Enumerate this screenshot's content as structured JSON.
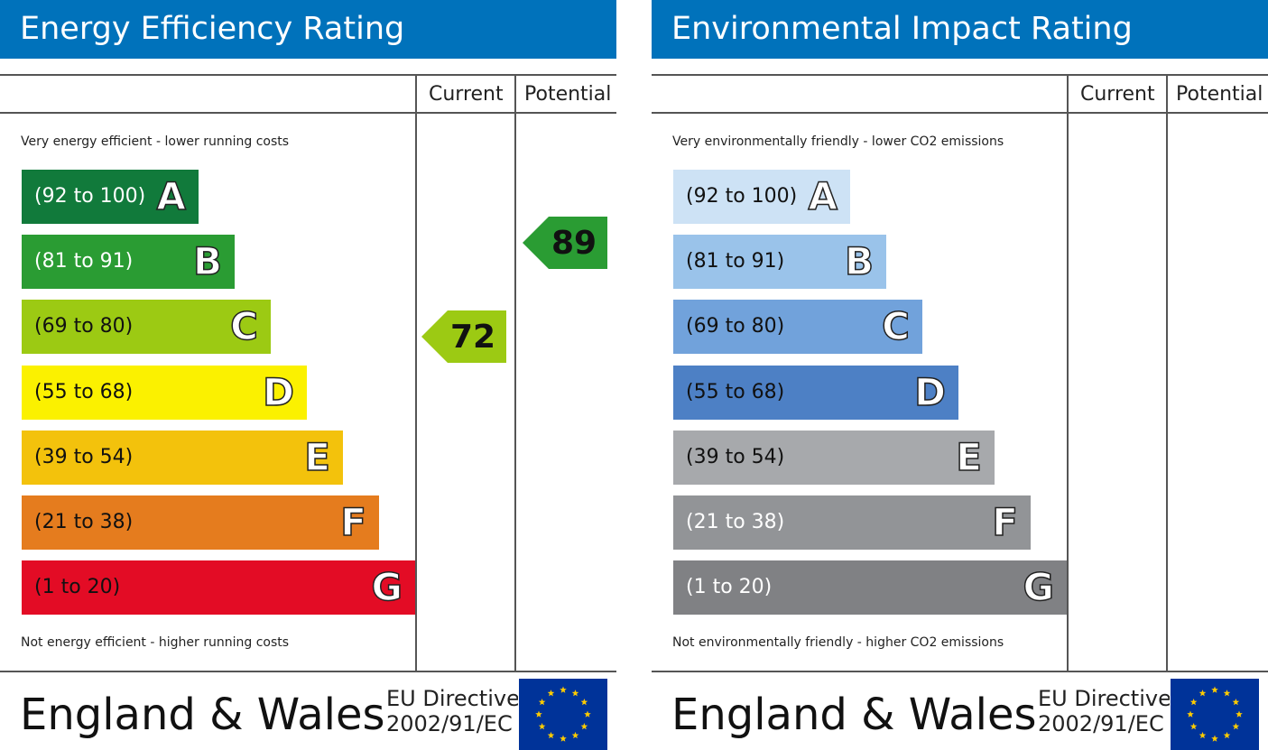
{
  "energy": {
    "title": "Energy Efficiency Rating",
    "col_current": "Current",
    "col_potential": "Potential",
    "top_caption": "Very energy efficient - lower running costs",
    "bottom_caption": "Not energy efficient - higher running costs",
    "bands": [
      {
        "range": "(92 to 100)",
        "letter": "A",
        "color": "#117a3b",
        "text_color": "#ffffff"
      },
      {
        "range": "(81 to 91)",
        "letter": "B",
        "color": "#2a9c33",
        "text_color": "#ffffff"
      },
      {
        "range": "(69 to 80)",
        "letter": "C",
        "color": "#9cca13",
        "text_color": "#111111"
      },
      {
        "range": "(55 to 68)",
        "letter": "D",
        "color": "#fbf100",
        "text_color": "#111111"
      },
      {
        "range": "(39 to 54)",
        "letter": "E",
        "color": "#f3c20c",
        "text_color": "#111111"
      },
      {
        "range": "(21 to 38)",
        "letter": "F",
        "color": "#e57c1e",
        "text_color": "#111111"
      },
      {
        "range": "(1 to 20)",
        "letter": "G",
        "color": "#e30c25",
        "text_color": "#111111"
      }
    ],
    "current_value": "72",
    "current_color": "#9cca13",
    "potential_value": "89",
    "potential_color": "#2a9c33",
    "footer_region": "England & Wales",
    "footer_directive_line1": "EU Directive",
    "footer_directive_line2": "2002/91/EC"
  },
  "environment": {
    "title": "Environmental Impact Rating",
    "col_current": "Current",
    "col_potential": "Potential",
    "top_caption": "Very environmentally friendly - lower CO2 emissions",
    "bottom_caption": "Not environmentally friendly - higher CO2 emissions",
    "bands": [
      {
        "range": "(92 to 100)",
        "letter": "A",
        "color": "#cde2f5",
        "text_color": "#111111"
      },
      {
        "range": "(81 to 91)",
        "letter": "B",
        "color": "#9ac3ea",
        "text_color": "#111111"
      },
      {
        "range": "(69 to 80)",
        "letter": "C",
        "color": "#71a2db",
        "text_color": "#111111"
      },
      {
        "range": "(55 to 68)",
        "letter": "D",
        "color": "#4d80c5",
        "text_color": "#111111"
      },
      {
        "range": "(39 to 54)",
        "letter": "E",
        "color": "#a7a9ac",
        "text_color": "#111111"
      },
      {
        "range": "(21 to 38)",
        "letter": "F",
        "color": "#929497",
        "text_color": "#ffffff"
      },
      {
        "range": "(1 to 20)",
        "letter": "G",
        "color": "#808184",
        "text_color": "#ffffff"
      }
    ],
    "footer_region": "England & Wales",
    "footer_directive_line1": "EU Directive",
    "footer_directive_line2": "2002/91/EC"
  },
  "chart_data": [
    {
      "type": "bar",
      "title": "Energy Efficiency Rating",
      "categories": [
        "A",
        "B",
        "C",
        "D",
        "E",
        "F",
        "G"
      ],
      "ranges": [
        "92 to 100",
        "81 to 91",
        "69 to 80",
        "55 to 68",
        "39 to 54",
        "21 to 38",
        "1 to 20"
      ],
      "series": [
        {
          "name": "Current",
          "value": 72,
          "band": "C"
        },
        {
          "name": "Potential",
          "value": 89,
          "band": "B"
        }
      ]
    },
    {
      "type": "bar",
      "title": "Environmental Impact Rating",
      "categories": [
        "A",
        "B",
        "C",
        "D",
        "E",
        "F",
        "G"
      ],
      "ranges": [
        "92 to 100",
        "81 to 91",
        "69 to 80",
        "55 to 68",
        "39 to 54",
        "21 to 38",
        "1 to 20"
      ],
      "series": []
    }
  ]
}
